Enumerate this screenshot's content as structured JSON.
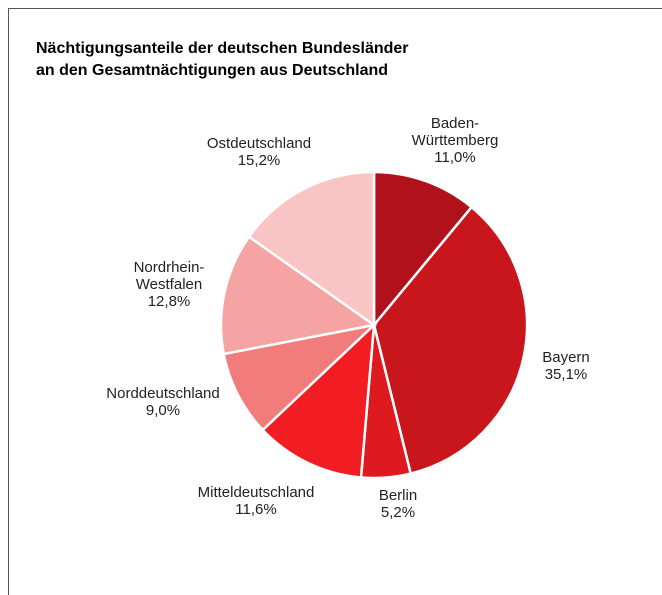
{
  "chart_data": {
    "type": "pie",
    "title": [
      "Nächtigungsanteile der deutschen Bundesländer",
      "an den Gesamtnächtigungen aus Deutschland"
    ],
    "categories": [
      "Baden-Württemberg",
      "Bayern",
      "Berlin",
      "Mitteldeutschland",
      "Norddeutschland",
      "Nordrhein-Westfalen",
      "Ostdeutschland"
    ],
    "values": [
      11.0,
      35.1,
      5.2,
      11.6,
      9.0,
      12.8,
      15.2
    ],
    "value_labels": [
      "11,0%",
      "35,1%",
      "5,2%",
      "11,6%",
      "9,0%",
      "12,8%",
      "15,2%"
    ],
    "colors": [
      "#b0111a",
      "#c8161c",
      "#de1a20",
      "#f21d22",
      "#f27c7c",
      "#f5a3a3",
      "#f8c4c4"
    ]
  }
}
